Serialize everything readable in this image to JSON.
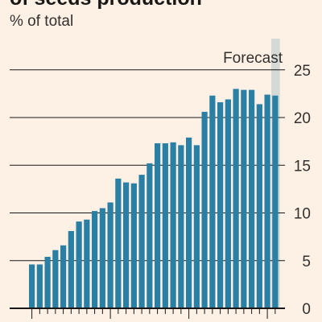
{
  "title": "of seeds production",
  "subtitle": "% of total",
  "colors": {
    "background": "#fdf1e6",
    "bar": "#2a7fa5",
    "forecast_band": "#d5dad7",
    "grid": "#1a1816",
    "text": "#33302e"
  },
  "chart_data": {
    "type": "bar",
    "title": "",
    "ylabel": "% of total",
    "ylim": [
      0,
      28
    ],
    "yticks": [
      0,
      5,
      10,
      15,
      20,
      25
    ],
    "ytick_labels": [
      "0",
      "5",
      "10",
      "15",
      "20",
      "25"
    ],
    "y_axis_side": "right",
    "grid": true,
    "annotation": "Forecast",
    "forecast_bars": 1,
    "values": [
      4.6,
      4.6,
      5.4,
      6.1,
      6.6,
      8.1,
      9.1,
      9.3,
      10.2,
      10.5,
      11.1,
      13.6,
      13.2,
      13.1,
      14.0,
      15.2,
      17.3,
      17.3,
      17.4,
      17.1,
      17.9,
      17.1,
      20.6,
      22.3,
      21.6,
      21.9,
      23.0,
      22.9,
      22.9,
      21.4,
      22.4,
      22.3
    ]
  }
}
